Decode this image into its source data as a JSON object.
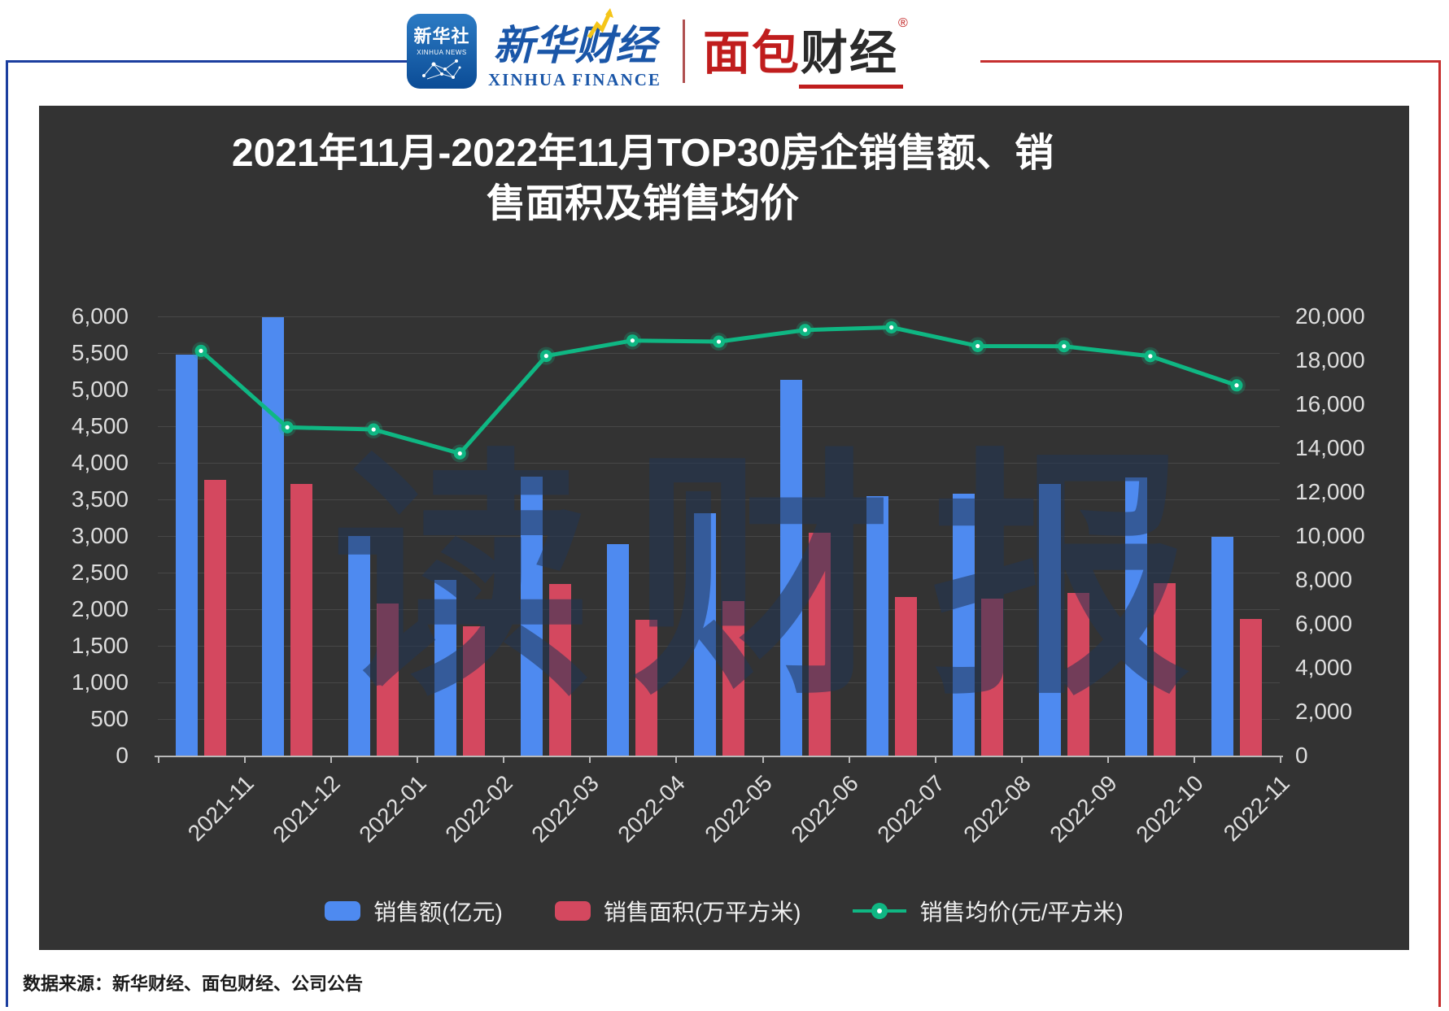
{
  "header": {
    "xinhua_icon": {
      "cn": "新华社",
      "en": "XINHUA NEWS"
    },
    "xinhua_finance": {
      "cn": "新华财经",
      "en": "XINHUA FINANCE"
    },
    "mianbao": {
      "red_part": "面包",
      "dark_part": "财经",
      "reg_mark": "®"
    }
  },
  "chart_data": {
    "type": "bar",
    "subtype": "bar+line combo, dual axis",
    "title": "2021年11月-2022年11月TOP30房企销售额、销\n售面积及销售均价",
    "categories": [
      "2021-11",
      "2021-12",
      "2022-01",
      "2022-02",
      "2022-03",
      "2022-04",
      "2022-05",
      "2022-06",
      "2022-07",
      "2022-08",
      "2022-09",
      "2022-10",
      "2022-11"
    ],
    "series": [
      {
        "name": "销售额(亿元)",
        "type": "bar",
        "axis": "left",
        "color": "#4E8AF0",
        "values": [
          5480,
          5990,
          3000,
          2400,
          3810,
          2890,
          3310,
          5130,
          3540,
          3580,
          3710,
          3800,
          2990
        ]
      },
      {
        "name": "销售面积(万平方米)",
        "type": "bar",
        "axis": "left",
        "color": "#D4485F",
        "values": [
          3770,
          3710,
          2080,
          1770,
          2340,
          1860,
          2110,
          3050,
          2170,
          2150,
          2220,
          2360,
          1870
        ]
      },
      {
        "name": "销售均价(元/平方米)",
        "type": "line",
        "axis": "right",
        "color": "#0FB783",
        "values": [
          18430,
          14950,
          14850,
          13760,
          18200,
          18900,
          18850,
          19380,
          19500,
          18650,
          18640,
          18190,
          16860
        ]
      }
    ],
    "left_axis": {
      "min": 0,
      "max": 6000,
      "step": 500
    },
    "right_axis": {
      "min": 0,
      "max": 20000,
      "step": 2000
    },
    "grid": true,
    "legend_position": "bottom"
  },
  "watermark": "读财报",
  "footer": {
    "source": "数据来源：新华财经、面包财经、公司公告"
  },
  "colors": {
    "panel_bg": "#333333",
    "bar_sales": "#4E8AF0",
    "bar_area": "#D4485F",
    "line_price": "#0FB783",
    "frame_blue": "#1C3F9F",
    "frame_red": "#C62F2F",
    "mianbao_red": "#C01D1D",
    "xinhua_blue": "#1A56A8"
  }
}
